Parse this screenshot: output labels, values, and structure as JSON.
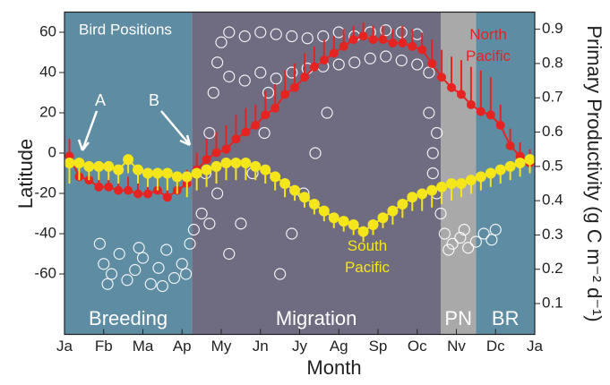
{
  "chart_data": {
    "type": "line",
    "title": "Bird Positions",
    "xlabel": "Month",
    "ylabel": "Latitude",
    "y2label": "Primary Productivity (g C m⁻² d⁻¹)",
    "xlim": [
      0,
      12
    ],
    "xticks": [
      {
        "value": 0,
        "label": "Ja"
      },
      {
        "value": 1,
        "label": "Fb"
      },
      {
        "value": 2,
        "label": "Ma"
      },
      {
        "value": 3,
        "label": "Ap"
      },
      {
        "value": 4,
        "label": "My"
      },
      {
        "value": 5,
        "label": "Jn"
      },
      {
        "value": 6,
        "label": "Jy"
      },
      {
        "value": 7,
        "label": "Ag"
      },
      {
        "value": 8,
        "label": "Sp"
      },
      {
        "value": 9,
        "label": "Oc"
      },
      {
        "value": 10,
        "label": "Nv"
      },
      {
        "value": 11,
        "label": "Dc"
      },
      {
        "value": 12,
        "label": "Ja"
      }
    ],
    "ylim": [
      -90,
      70
    ],
    "yticks": [
      -60,
      -40,
      -20,
      0,
      20,
      40,
      60
    ],
    "y2lim": [
      0.01,
      0.95
    ],
    "y2ticks": [
      0.1,
      0.2,
      0.3,
      0.4,
      0.5,
      0.6,
      0.7,
      0.8,
      0.9
    ],
    "regions": [
      {
        "label": "Breeding",
        "start": 0,
        "end": 3.25,
        "color": "#5e8ca3"
      },
      {
        "label": "Migration",
        "start": 3.25,
        "end": 9.6,
        "color": "#6f6c82"
      },
      {
        "label": "PN",
        "start": 9.6,
        "end": 10.5,
        "color": "#a9a9aa"
      },
      {
        "label": "BR",
        "start": 10.5,
        "end": 12,
        "color": "#5e8ca3"
      }
    ],
    "annotations": [
      "A",
      "B"
    ],
    "x": [
      0.125,
      0.375,
      0.625,
      0.875,
      1.125,
      1.375,
      1.625,
      1.875,
      2.125,
      2.375,
      2.625,
      2.875,
      3.125,
      3.375,
      3.625,
      3.875,
      4.125,
      4.375,
      4.625,
      4.875,
      5.125,
      5.375,
      5.625,
      5.875,
      6.125,
      6.375,
      6.625,
      6.875,
      7.125,
      7.375,
      7.625,
      7.875,
      8.125,
      8.375,
      8.625,
      8.875,
      9.125,
      9.375,
      9.625,
      9.875,
      10.125,
      10.375,
      10.625,
      10.875,
      11.125,
      11.375,
      11.625,
      11.875
    ],
    "scatter": {
      "color": "#ffffff",
      "x": [
        0.9,
        1.0,
        1.2,
        1.4,
        1.6,
        1.8,
        2.0,
        2.2,
        2.4,
        2.6,
        2.8,
        3.0,
        3.2,
        3.3,
        1.1,
        1.9,
        2.5,
        3.1,
        3.5,
        3.6,
        3.7,
        3.8,
        3.9,
        4.0,
        3.7,
        3.9,
        4.2,
        4.5,
        5.1,
        5.2,
        4.8,
        5.5,
        5.8,
        6.1,
        6.4,
        6.7,
        4.2,
        4.6,
        5.0,
        5.4,
        5.8,
        6.2,
        6.6,
        7.0,
        7.4,
        7.8,
        8.2,
        8.6,
        9.0,
        4.2,
        4.6,
        5.0,
        5.4,
        5.8,
        6.2,
        6.6,
        7.0,
        7.4,
        7.8,
        8.2,
        8.6,
        9.0,
        9.3,
        9.3,
        9.4,
        9.5,
        9.6,
        9.4,
        9.5,
        9.7,
        9.9,
        10.1,
        10.3,
        10.5,
        10.7,
        10.9,
        11.0,
        9.8,
        10.2
      ],
      "values": [
        -45,
        -55,
        -60,
        -50,
        -63,
        -58,
        -52,
        -65,
        -57,
        -48,
        -62,
        -55,
        -45,
        -38,
        -65,
        -47,
        -66,
        -60,
        -30,
        -10,
        10,
        30,
        45,
        55,
        -35,
        -20,
        -50,
        -35,
        10,
        30,
        -10,
        -60,
        -40,
        -20,
        0,
        20,
        60,
        58,
        60,
        59,
        58,
        57,
        58,
        60,
        58,
        60,
        61,
        60,
        59,
        38,
        36,
        40,
        37,
        40,
        42,
        43,
        44,
        45,
        47,
        48,
        46,
        44,
        40,
        20,
        0,
        -20,
        -30,
        -10,
        10,
        -40,
        -45,
        -42,
        -47,
        -44,
        -40,
        -43,
        -38,
        -48,
        -38
      ]
    },
    "series": [
      {
        "name": "North Pacific",
        "color": "#e52421",
        "axis": "y2",
        "error_direction": "up",
        "values": [
          0.53,
          0.47,
          0.46,
          0.44,
          0.44,
          0.43,
          0.43,
          0.42,
          0.42,
          0.43,
          0.41,
          0.43,
          0.45,
          0.49,
          0.52,
          0.54,
          0.55,
          0.58,
          0.6,
          0.62,
          0.65,
          0.67,
          0.71,
          0.73,
          0.76,
          0.79,
          0.81,
          0.83,
          0.85,
          0.87,
          0.88,
          0.87,
          0.87,
          0.86,
          0.86,
          0.85,
          0.84,
          0.8,
          0.76,
          0.73,
          0.71,
          0.68,
          0.66,
          0.65,
          0.62,
          0.56,
          0.53,
          0.51
        ],
        "errors": [
          0.05,
          0.04,
          0.03,
          0.03,
          0.03,
          0.03,
          0.04,
          0.03,
          0.03,
          0.04,
          0.03,
          0.04,
          0.04,
          0.05,
          0.06,
          0.06,
          0.07,
          0.07,
          0.07,
          0.06,
          0.07,
          0.07,
          0.07,
          0.07,
          0.07,
          0.06,
          0.06,
          0.05,
          0.05,
          0.04,
          0.04,
          0.04,
          0.04,
          0.04,
          0.05,
          0.05,
          0.05,
          0.07,
          0.08,
          0.09,
          0.1,
          0.11,
          0.12,
          0.11,
          0.06,
          0.05,
          0.04,
          0.04
        ]
      },
      {
        "name": "South Pacific",
        "color": "#f5e51b",
        "axis": "y2",
        "error_direction": "down",
        "values": [
          0.51,
          0.51,
          0.5,
          0.5,
          0.5,
          0.49,
          0.52,
          0.49,
          0.48,
          0.48,
          0.48,
          0.47,
          0.47,
          0.48,
          0.49,
          0.5,
          0.51,
          0.51,
          0.51,
          0.5,
          0.49,
          0.47,
          0.45,
          0.43,
          0.41,
          0.39,
          0.37,
          0.35,
          0.34,
          0.33,
          0.31,
          0.33,
          0.35,
          0.37,
          0.39,
          0.41,
          0.42,
          0.43,
          0.44,
          0.45,
          0.45,
          0.46,
          0.47,
          0.48,
          0.49,
          0.5,
          0.51,
          0.52
        ],
        "errors": [
          0.06,
          0.05,
          0.04,
          0.04,
          0.04,
          0.04,
          0.04,
          0.04,
          0.04,
          0.05,
          0.05,
          0.05,
          0.06,
          0.05,
          0.05,
          0.05,
          0.05,
          0.05,
          0.05,
          0.04,
          0.04,
          0.04,
          0.04,
          0.03,
          0.03,
          0.03,
          0.03,
          0.03,
          0.03,
          0.03,
          0.03,
          0.03,
          0.03,
          0.04,
          0.04,
          0.04,
          0.05,
          0.05,
          0.05,
          0.05,
          0.04,
          0.04,
          0.04,
          0.04,
          0.04,
          0.04,
          0.04,
          0.04
        ]
      }
    ]
  }
}
